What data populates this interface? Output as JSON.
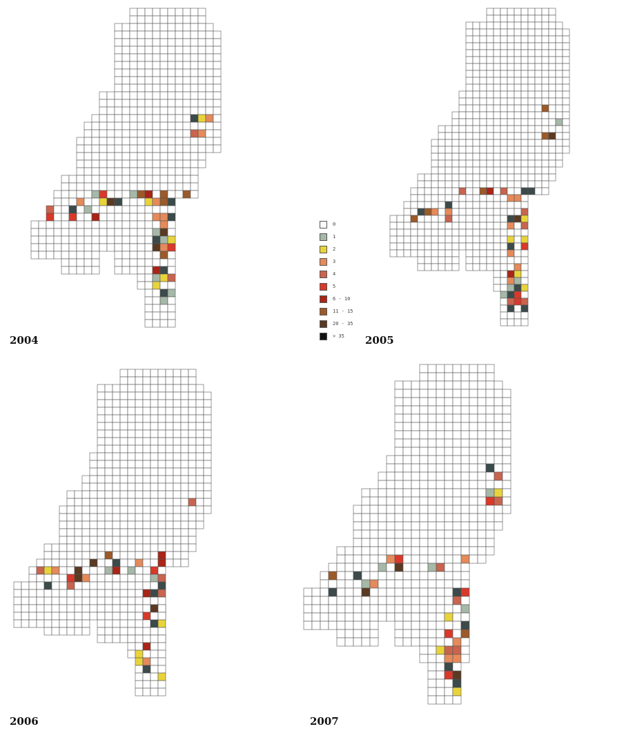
{
  "panels": [
    {
      "id": "2004",
      "label": "2004"
    },
    {
      "id": "2005",
      "label": "2005"
    },
    {
      "id": "2006",
      "label": "2006"
    },
    {
      "id": "2007",
      "label": "2007"
    }
  ],
  "legend": {
    "items": [
      {
        "label": "0",
        "color": "#ffffff"
      },
      {
        "label": "1",
        "color": "#a6b8a8"
      },
      {
        "label": "2",
        "color": "#e8d43a"
      },
      {
        "label": "3",
        "color": "#e58a5a"
      },
      {
        "label": "4",
        "color": "#c8644f"
      },
      {
        "label": "5",
        "color": "#d9392a"
      },
      {
        "label": "6 - 10",
        "color": "#a82517"
      },
      {
        "label": "11 - 15",
        "color": "#9c5a2a"
      },
      {
        "label": "20 - 35",
        "color": "#5a3a22"
      },
      {
        "label": "> 35",
        "color": "#111111"
      }
    ]
  },
  "colors": {
    "grid_line": "#555555",
    "cell_fill": "#ffffff",
    "dark_cell": "#3c4a4a"
  }
}
